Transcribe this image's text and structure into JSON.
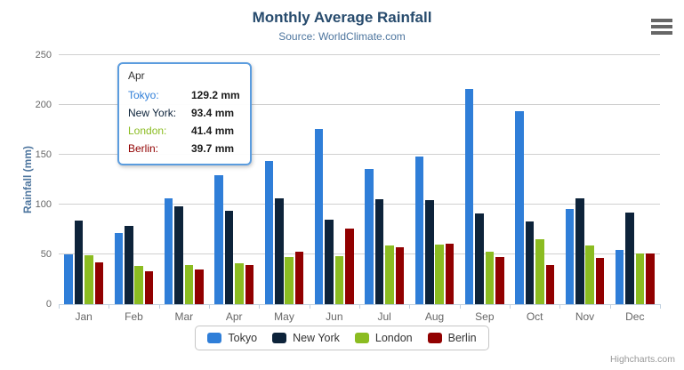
{
  "header": {
    "title": "Monthly Average Rainfall",
    "subtitle": "Source: WorldClimate.com"
  },
  "chart_data": {
    "type": "bar",
    "title": "Monthly Average Rainfall",
    "subtitle": "Source: WorldClimate.com",
    "xlabel": "",
    "ylabel": "Rainfall (mm)",
    "unit": "mm",
    "ylim": [
      0,
      250
    ],
    "yticks": [
      0,
      50,
      100,
      150,
      200,
      250
    ],
    "grid": true,
    "legend_position": "bottom",
    "categories": [
      "Jan",
      "Feb",
      "Mar",
      "Apr",
      "May",
      "Jun",
      "Jul",
      "Aug",
      "Sep",
      "Oct",
      "Nov",
      "Dec"
    ],
    "series": [
      {
        "name": "Tokyo",
        "color": "#2f7ed8",
        "values": [
          49.9,
          71.5,
          106.4,
          129.2,
          144.0,
          176.0,
          135.6,
          148.5,
          216.4,
          194.1,
          95.6,
          54.4
        ]
      },
      {
        "name": "New York",
        "color": "#0d233a",
        "values": [
          83.6,
          78.8,
          98.5,
          93.4,
          106.0,
          84.5,
          105.0,
          104.3,
          91.2,
          83.5,
          106.6,
          92.3
        ]
      },
      {
        "name": "London",
        "color": "#8bbc21",
        "values": [
          48.9,
          38.8,
          39.3,
          41.4,
          47.0,
          48.3,
          59.0,
          59.6,
          52.4,
          65.2,
          59.3,
          51.2
        ]
      },
      {
        "name": "Berlin",
        "color": "#910000",
        "values": [
          42.4,
          33.2,
          34.5,
          39.7,
          52.6,
          75.5,
          57.4,
          60.4,
          47.6,
          39.1,
          46.8,
          51.1
        ]
      }
    ]
  },
  "tooltip": {
    "header": "Apr",
    "rows": [
      {
        "label": "Tokyo:",
        "value": "129.2 mm",
        "color": "#2f7ed8"
      },
      {
        "label": "New York:",
        "value": "93.4 mm",
        "color": "#0d233a"
      },
      {
        "label": "London:",
        "value": "41.4 mm",
        "color": "#8bbc21"
      },
      {
        "label": "Berlin:",
        "value": "39.7 mm",
        "color": "#910000"
      }
    ]
  },
  "legend": {
    "items": [
      {
        "label": "Tokyo",
        "color": "#2f7ed8"
      },
      {
        "label": "New York",
        "color": "#0d233a"
      },
      {
        "label": "London",
        "color": "#8bbc21"
      },
      {
        "label": "Berlin",
        "color": "#910000"
      }
    ]
  },
  "credits": {
    "label": "Highcharts.com"
  },
  "colors": {
    "title": "#274b6d",
    "subtitle": "#4d759e",
    "axis_label": "#666666",
    "gridline": "#d0d0d0",
    "axis_line": "#c0d0e0",
    "tooltip_border": "#5b9cde"
  }
}
